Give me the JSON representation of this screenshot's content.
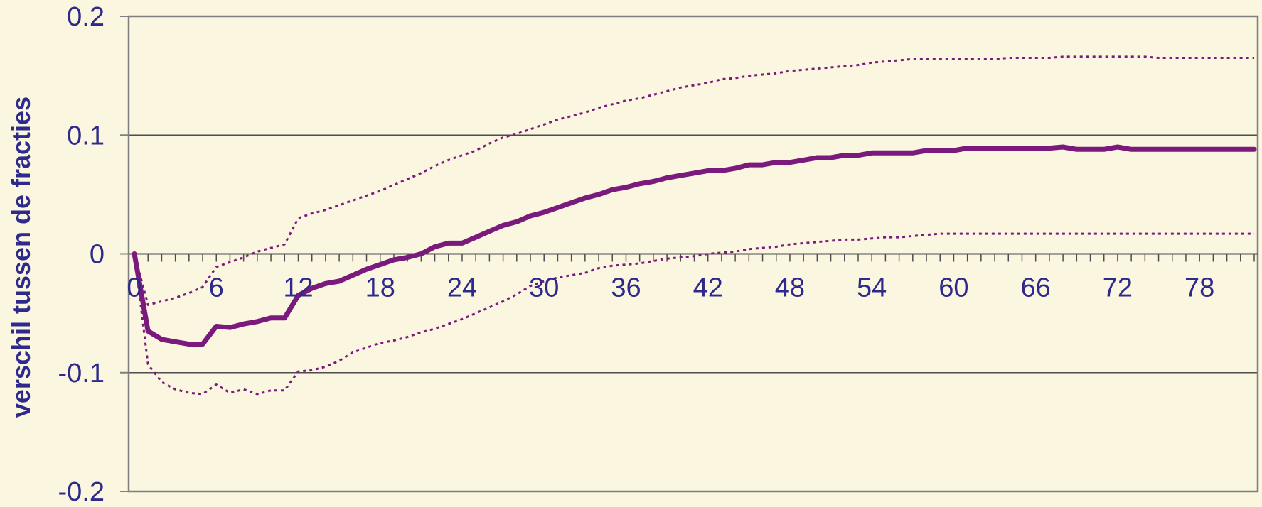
{
  "chart_data": {
    "type": "line",
    "title": "",
    "xlabel": "",
    "ylabel": "verschil tussen de fracties",
    "xlim": [
      0,
      82
    ],
    "ylim": [
      -0.2,
      0.2
    ],
    "grid": true,
    "x_ticks": [
      0,
      6,
      12,
      18,
      24,
      30,
      36,
      42,
      48,
      54,
      60,
      66,
      72,
      78
    ],
    "x_tick_labels": [
      "0",
      "6",
      "12",
      "18",
      "24",
      "30",
      "36",
      "42",
      "48",
      "54",
      "60",
      "66",
      "72",
      "78"
    ],
    "y_ticks": [
      0.2,
      0.1,
      0,
      -0.1,
      -0.2
    ],
    "y_tick_labels": [
      "0.2",
      "0.1",
      "0",
      "-0.1",
      "-0.2"
    ],
    "colors": {
      "series": "#7B1A7D",
      "axis_text": "#2E2A8C",
      "axis_line": "#7F7F7F",
      "background": "#FBF6DF"
    },
    "series": [
      {
        "style": "solid",
        "x": [
          0,
          1,
          2,
          3,
          4,
          5,
          6,
          7,
          8,
          9,
          10,
          11,
          12,
          13,
          14,
          15,
          16,
          17,
          18,
          19,
          20,
          21,
          22,
          23,
          24,
          25,
          26,
          27,
          28,
          29,
          30,
          31,
          32,
          33,
          34,
          35,
          36,
          37,
          38,
          39,
          40,
          41,
          42,
          43,
          44,
          45,
          46,
          47,
          48,
          49,
          50,
          51,
          52,
          53,
          54,
          55,
          56,
          57,
          58,
          59,
          60,
          61,
          62,
          63,
          64,
          65,
          66,
          67,
          68,
          69,
          70,
          71,
          72,
          73,
          74,
          75,
          76,
          77,
          78,
          79,
          80,
          81,
          82
        ],
        "values": [
          0,
          -0.065,
          -0.072,
          -0.074,
          -0.076,
          -0.076,
          -0.061,
          -0.062,
          -0.059,
          -0.057,
          -0.054,
          -0.054,
          -0.035,
          -0.029,
          -0.025,
          -0.023,
          -0.018,
          -0.013,
          -0.009,
          -0.005,
          -0.003,
          0,
          0.006,
          0.009,
          0.009,
          0.014,
          0.019,
          0.024,
          0.027,
          0.032,
          0.035,
          0.039,
          0.043,
          0.047,
          0.05,
          0.054,
          0.056,
          0.059,
          0.061,
          0.064,
          0.066,
          0.068,
          0.07,
          0.07,
          0.072,
          0.075,
          0.075,
          0.077,
          0.077,
          0.079,
          0.081,
          0.081,
          0.083,
          0.083,
          0.085,
          0.085,
          0.085,
          0.085,
          0.087,
          0.087,
          0.087,
          0.089,
          0.089,
          0.089,
          0.089,
          0.089,
          0.089,
          0.089,
          0.09,
          0.088,
          0.088,
          0.088,
          0.09,
          0.088,
          0.088,
          0.088,
          0.088,
          0.088,
          0.088,
          0.088,
          0.088,
          0.088,
          0.088
        ]
      },
      {
        "style": "dotted",
        "x": [
          0,
          1,
          2,
          3,
          4,
          5,
          6,
          7,
          8,
          9,
          10,
          11,
          12,
          13,
          14,
          15,
          16,
          17,
          18,
          19,
          20,
          21,
          22,
          23,
          24,
          25,
          26,
          27,
          28,
          29,
          30,
          31,
          32,
          33,
          34,
          35,
          36,
          37,
          38,
          39,
          40,
          41,
          42,
          43,
          44,
          45,
          46,
          47,
          48,
          49,
          50,
          51,
          52,
          53,
          54,
          55,
          56,
          57,
          58,
          59,
          60,
          61,
          62,
          63,
          64,
          65,
          66,
          67,
          68,
          69,
          70,
          71,
          72,
          73,
          74,
          75,
          76,
          77,
          78,
          79,
          80,
          81,
          82
        ],
        "values": [
          0,
          -0.043,
          -0.04,
          -0.037,
          -0.033,
          -0.028,
          -0.011,
          -0.007,
          -0.003,
          0.002,
          0.005,
          0.008,
          0.03,
          0.034,
          0.037,
          0.041,
          0.045,
          0.049,
          0.053,
          0.058,
          0.063,
          0.068,
          0.074,
          0.079,
          0.083,
          0.087,
          0.093,
          0.098,
          0.101,
          0.105,
          0.109,
          0.113,
          0.116,
          0.119,
          0.123,
          0.126,
          0.129,
          0.131,
          0.134,
          0.137,
          0.14,
          0.142,
          0.144,
          0.147,
          0.148,
          0.15,
          0.151,
          0.152,
          0.154,
          0.155,
          0.156,
          0.157,
          0.158,
          0.159,
          0.161,
          0.162,
          0.163,
          0.164,
          0.164,
          0.164,
          0.164,
          0.164,
          0.164,
          0.164,
          0.165,
          0.165,
          0.165,
          0.165,
          0.166,
          0.166,
          0.166,
          0.166,
          0.166,
          0.166,
          0.166,
          0.165,
          0.165,
          0.165,
          0.165,
          0.165,
          0.165,
          0.165,
          0.165
        ]
      },
      {
        "style": "dotted",
        "x": [
          0,
          1,
          2,
          3,
          4,
          5,
          6,
          7,
          8,
          9,
          10,
          11,
          12,
          13,
          14,
          15,
          16,
          17,
          18,
          19,
          20,
          21,
          22,
          23,
          24,
          25,
          26,
          27,
          28,
          29,
          30,
          31,
          32,
          33,
          34,
          35,
          36,
          37,
          38,
          39,
          40,
          41,
          42,
          43,
          44,
          45,
          46,
          47,
          48,
          49,
          50,
          51,
          52,
          53,
          54,
          55,
          56,
          57,
          58,
          59,
          60,
          61,
          62,
          63,
          64,
          65,
          66,
          67,
          68,
          69,
          70,
          71,
          72,
          73,
          74,
          75,
          76,
          77,
          78,
          79,
          80,
          81,
          82
        ],
        "values": [
          0,
          -0.093,
          -0.108,
          -0.114,
          -0.117,
          -0.118,
          -0.11,
          -0.117,
          -0.114,
          -0.118,
          -0.115,
          -0.115,
          -0.099,
          -0.098,
          -0.095,
          -0.09,
          -0.083,
          -0.079,
          -0.075,
          -0.073,
          -0.07,
          -0.066,
          -0.063,
          -0.059,
          -0.055,
          -0.05,
          -0.045,
          -0.04,
          -0.034,
          -0.027,
          -0.023,
          -0.02,
          -0.018,
          -0.016,
          -0.012,
          -0.01,
          -0.009,
          -0.008,
          -0.006,
          -0.004,
          -0.003,
          -0.002,
          0,
          0.001,
          0.002,
          0.004,
          0.005,
          0.006,
          0.008,
          0.009,
          0.01,
          0.011,
          0.012,
          0.012,
          0.013,
          0.014,
          0.014,
          0.015,
          0.016,
          0.017,
          0.017,
          0.017,
          0.017,
          0.017,
          0.017,
          0.017,
          0.017,
          0.017,
          0.017,
          0.017,
          0.017,
          0.017,
          0.017,
          0.017,
          0.017,
          0.017,
          0.017,
          0.017,
          0.017,
          0.017,
          0.017,
          0.017,
          0.017
        ]
      }
    ]
  }
}
